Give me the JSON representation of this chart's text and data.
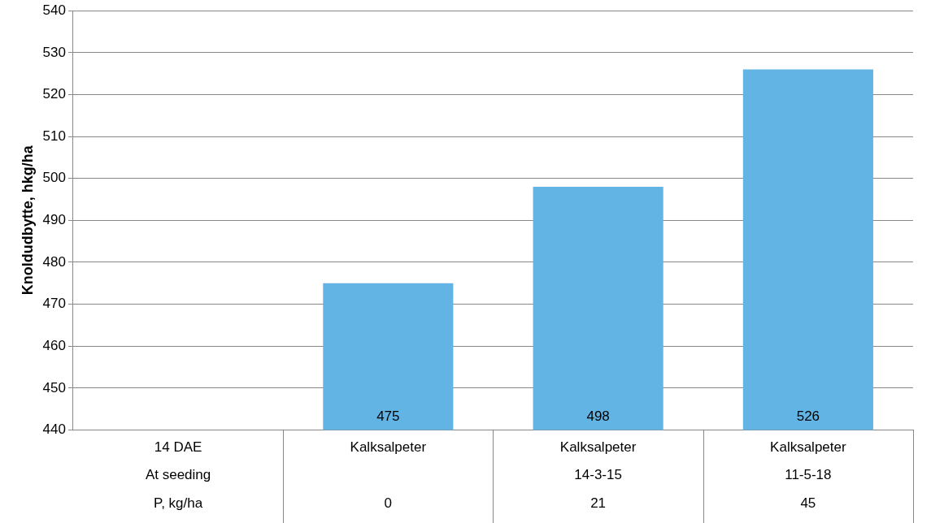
{
  "chart_data": {
    "type": "bar",
    "ylabel": "Knoldudbytte, hkg/ha",
    "categories": [
      "14 DAE\nAt seeding\nP, kg/ha",
      "Kalksalpeter\n\n0",
      "Kalksalpeter\n14-3-15\n21",
      "Kalksalpeter\n11-5-18\n45"
    ],
    "values": [
      null,
      475,
      498,
      526
    ],
    "color": "#62b4e4",
    "ylim": [
      440,
      540
    ],
    "yticks": [
      440,
      450,
      460,
      470,
      480,
      490,
      500,
      510,
      520,
      530,
      540
    ],
    "grid": "y",
    "data_labels": true,
    "legend": false
  }
}
